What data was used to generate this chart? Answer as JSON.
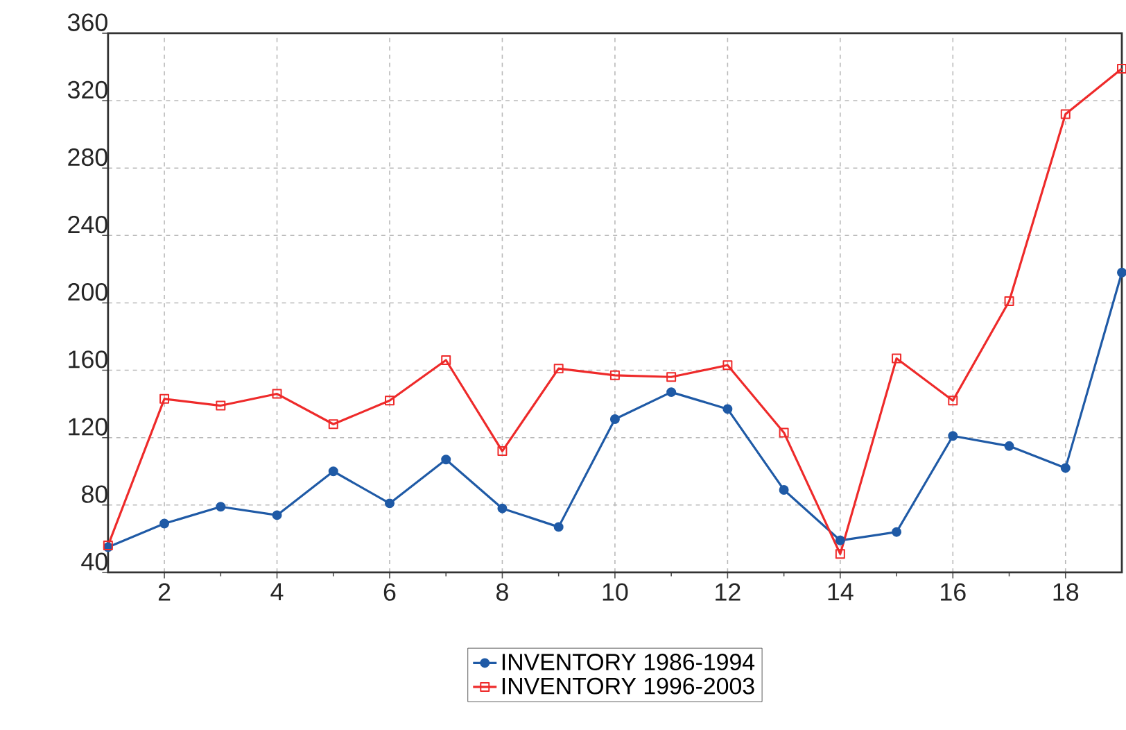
{
  "chart_data": {
    "type": "line",
    "x": [
      1,
      2,
      3,
      4,
      5,
      6,
      7,
      8,
      9,
      10,
      11,
      12,
      13,
      14,
      15,
      16,
      17,
      18,
      19
    ],
    "series": [
      {
        "name": "INVENTORY 1986-1994",
        "color": "#1f5aa6",
        "marker": "circle",
        "values": [
          55,
          69,
          79,
          74,
          100,
          81,
          107,
          78,
          67,
          131,
          147,
          137,
          89,
          59,
          64,
          121,
          115,
          102,
          218
        ]
      },
      {
        "name": "INVENTORY 1996-2003",
        "color": "#ee2a2a",
        "marker": "square",
        "values": [
          56,
          143,
          139,
          146,
          128,
          142,
          166,
          112,
          161,
          157,
          156,
          163,
          123,
          51,
          167,
          142,
          201,
          312,
          339
        ]
      }
    ],
    "xlim": [
      1,
      19
    ],
    "xticks": [
      2,
      4,
      6,
      8,
      10,
      12,
      14,
      16,
      18
    ],
    "ylim": [
      40,
      360
    ],
    "yticks": [
      40,
      80,
      120,
      160,
      200,
      240,
      280,
      320,
      360
    ],
    "grid": true,
    "legend": "bottom",
    "line_style": "solid"
  }
}
